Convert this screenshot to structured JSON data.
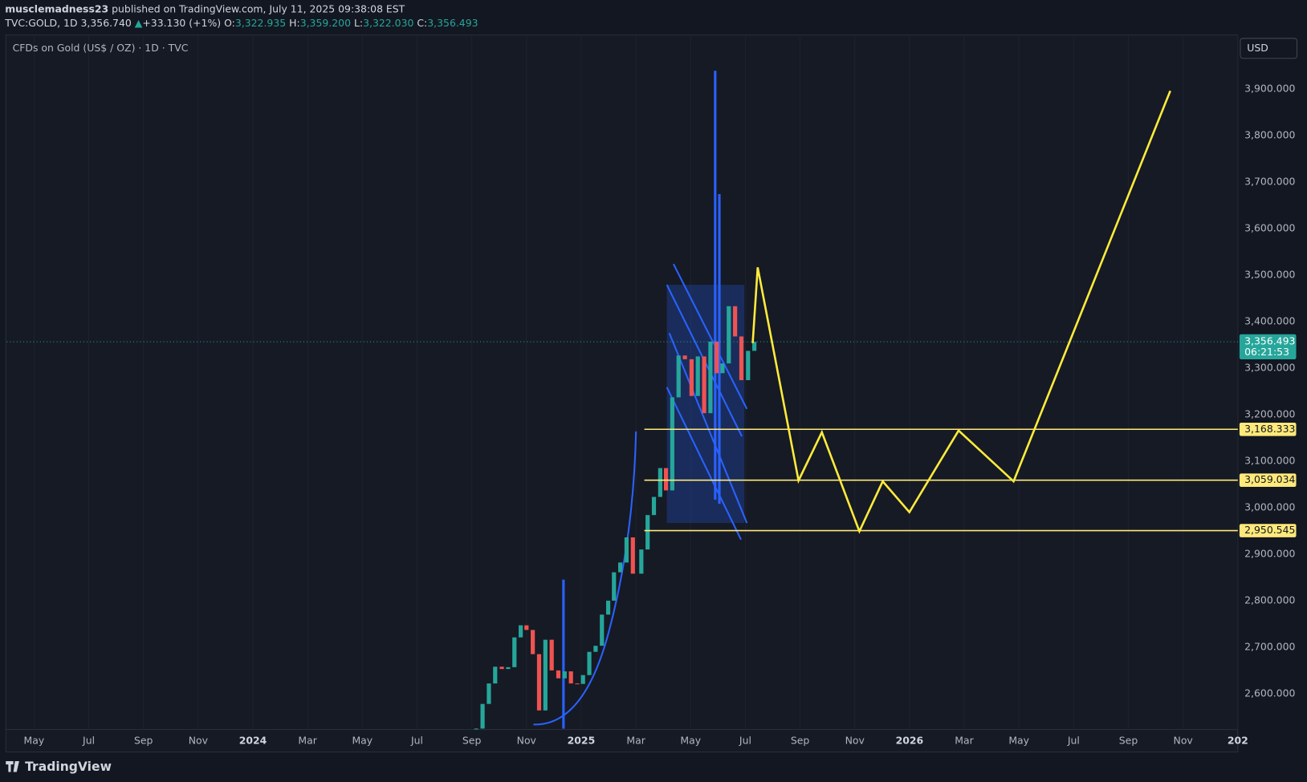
{
  "header": {
    "author": "musclemadness23",
    "published": "published on TradingView.com, July 11, 2025 09:38:08 EST",
    "symbol": "TVC:GOLD, 1D",
    "last": "3,356.740",
    "change": "+33.130 (+1%)",
    "o_label": "O:",
    "open": "3,322.935",
    "h_label": "H:",
    "high": "3,359.200",
    "l_label": "L:",
    "low": "3,322.030",
    "c_label": "C:",
    "close": "3,356.493"
  },
  "legend": "CFDs on Gold (US$ / OZ) · 1D · TVC",
  "currency_button": "USD",
  "footer": "TradingView",
  "chart_data": {
    "type": "candles",
    "x": [
      "2024-09-06",
      "2024-09-13",
      "2024-09-20",
      "2024-09-27",
      "2024-10-04",
      "2024-10-11",
      "2024-10-18",
      "2024-10-25",
      "2024-11-01",
      "2024-11-08",
      "2024-11-15",
      "2024-11-22",
      "2024-11-29",
      "2024-12-06",
      "2024-12-13",
      "2024-12-20",
      "2024-12-27",
      "2025-01-03",
      "2025-01-10",
      "2025-01-17",
      "2025-01-24",
      "2025-01-31",
      "2025-02-07",
      "2025-02-14",
      "2025-02-21",
      "2025-02-28",
      "2025-03-07",
      "2025-03-14",
      "2025-03-21",
      "2025-03-28",
      "2025-04-04",
      "2025-04-11",
      "2025-04-18",
      "2025-04-25",
      "2025-05-02",
      "2025-05-09",
      "2025-05-16",
      "2025-05-23",
      "2025-05-30",
      "2025-06-06",
      "2025-06-13",
      "2025-06-20",
      "2025-06-27",
      "2025-07-04",
      "2025-07-11"
    ],
    "values": [
      2525,
      2578,
      2622,
      2658,
      2653,
      2657,
      2721,
      2747,
      2737,
      2685,
      2564,
      2716,
      2650,
      2633,
      2648,
      2622,
      2621,
      2640,
      2690,
      2703,
      2770,
      2800,
      2861,
      2882,
      2936,
      2858,
      2910,
      2984,
      3023,
      3085,
      3037,
      3237,
      3327,
      3319,
      3240,
      3325,
      3203,
      3357,
      3289,
      3310,
      3433,
      3368,
      3274,
      3337,
      3356.493
    ],
    "up_color": "#26a69a",
    "down_color": "#ef5350",
    "xlim": [
      "2023-04",
      "2027-01"
    ],
    "xticks": [
      {
        "value": "2023-05",
        "label": "May"
      },
      {
        "value": "2023-07",
        "label": "Jul"
      },
      {
        "value": "2023-09",
        "label": "Sep"
      },
      {
        "value": "2023-11",
        "label": "Nov"
      },
      {
        "value": "2024-01",
        "label": "2024"
      },
      {
        "value": "2024-03",
        "label": "Mar"
      },
      {
        "value": "2024-05",
        "label": "May"
      },
      {
        "value": "2024-07",
        "label": "Jul"
      },
      {
        "value": "2024-09",
        "label": "Sep"
      },
      {
        "value": "2024-11",
        "label": "Nov"
      },
      {
        "value": "2025-01",
        "label": "2025"
      },
      {
        "value": "2025-03",
        "label": "Mar"
      },
      {
        "value": "2025-05",
        "label": "May"
      },
      {
        "value": "2025-07",
        "label": "Jul"
      },
      {
        "value": "2025-09",
        "label": "Sep"
      },
      {
        "value": "2025-11",
        "label": "Nov"
      },
      {
        "value": "2026-01",
        "label": "2026"
      },
      {
        "value": "2026-03",
        "label": "Mar"
      },
      {
        "value": "2026-05",
        "label": "May"
      },
      {
        "value": "2026-07",
        "label": "Jul"
      },
      {
        "value": "2026-09",
        "label": "Sep"
      },
      {
        "value": "2026-11",
        "label": "Nov"
      },
      {
        "value": "2027-01",
        "label": "202"
      }
    ],
    "ylim": [
      2523,
      4016
    ],
    "yticks": [
      {
        "value": 2600,
        "label": "2,600.000"
      },
      {
        "value": 2700,
        "label": "2,700.000"
      },
      {
        "value": 2800,
        "label": "2,800.000"
      },
      {
        "value": 2900,
        "label": "2,900.000"
      },
      {
        "value": 3000,
        "label": "3,000.000"
      },
      {
        "value": 3100,
        "label": "3,100.000"
      },
      {
        "value": 3200,
        "label": "3,200.000"
      },
      {
        "value": 3300,
        "label": "3,300.000"
      },
      {
        "value": 3400,
        "label": "3,400.000"
      },
      {
        "value": 3500,
        "label": "3,500.000"
      },
      {
        "value": 3600,
        "label": "3,600.000"
      },
      {
        "value": 3700,
        "label": "3,700.000"
      },
      {
        "value": 3800,
        "label": "3,800.000"
      },
      {
        "value": 3900,
        "label": "3,900.000"
      }
    ],
    "levels": [
      {
        "value": 3168.333,
        "label": "3,168.333"
      },
      {
        "value": 3059.034,
        "label": "3,059.034"
      },
      {
        "value": 2950.545,
        "label": "2,950.545"
      }
    ],
    "level_color": "#ffe97a",
    "current": {
      "value": 3356.493,
      "label": "3,356.493",
      "countdown": "06:21:53"
    },
    "grid": true
  }
}
